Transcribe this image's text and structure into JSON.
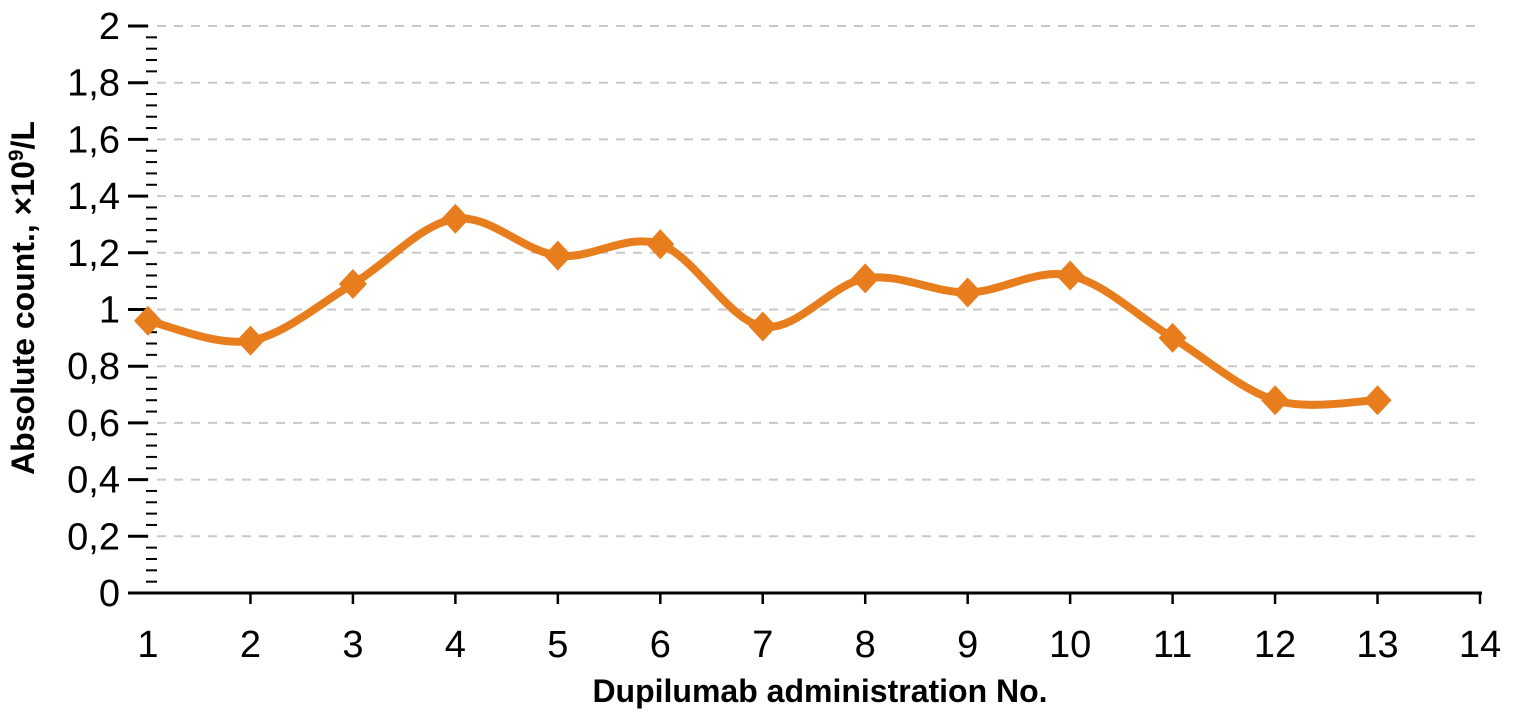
{
  "chart_data": {
    "type": "line",
    "title": "",
    "xlabel": "Dupilumab administration No.",
    "ylabel": "Absolute count., ×10⁹/L",
    "ylabel_parts": {
      "base": "Absolute count., ×10",
      "superscript": "9",
      "suffix": "/L"
    },
    "x": [
      1,
      2,
      3,
      4,
      5,
      6,
      7,
      8,
      9,
      10,
      11,
      12,
      13
    ],
    "series": [
      {
        "name": "Absolute count",
        "values": [
          0.96,
          0.89,
          1.09,
          1.32,
          1.19,
          1.23,
          0.94,
          1.11,
          1.06,
          1.12,
          0.9,
          0.68,
          0.68
        ]
      }
    ],
    "xlim": [
      1,
      14
    ],
    "ylim": [
      0,
      2
    ],
    "y_major_step": 0.2,
    "y_minor_step": 0.04,
    "x_tick_labels": [
      "1",
      "2",
      "3",
      "4",
      "5",
      "6",
      "7",
      "8",
      "9",
      "10",
      "11",
      "12",
      "13",
      "14"
    ],
    "y_tick_labels": [
      "0",
      "0,2",
      "0,4",
      "0,6",
      "0,8",
      "1",
      "1,2",
      "1,4",
      "1,6",
      "1,8",
      "2"
    ],
    "grid": "horizontal-dashed",
    "legend": "none",
    "line_smoothed": true,
    "marker": "diamond",
    "colors": {
      "line": "#E87D1E",
      "marker": "#E87D1E",
      "gridline": "#C8C8C8",
      "axis": "#000000",
      "text": "#000000",
      "background": "#FFFFFF"
    }
  }
}
